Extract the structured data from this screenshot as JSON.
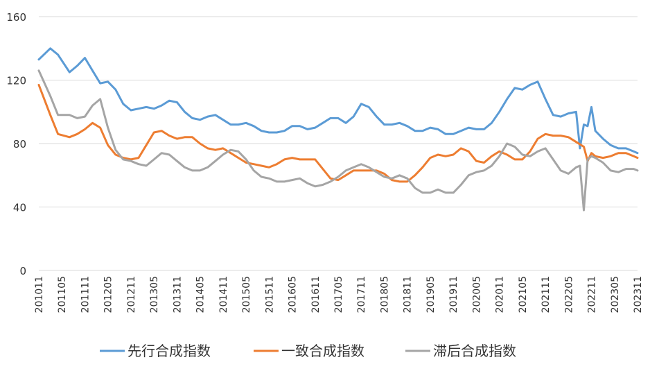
{
  "chart_data": {
    "type": "line",
    "title": "",
    "xlabel": "",
    "ylabel": "",
    "ylim": [
      0,
      160
    ],
    "yticks": [
      0,
      40,
      80,
      120,
      160
    ],
    "grid": true,
    "legend_position": "bottom",
    "x_tick_labels": [
      "201011",
      "201105",
      "201111",
      "201205",
      "201211",
      "201305",
      "201311",
      "201405",
      "201411",
      "201505",
      "201511",
      "201605",
      "201611",
      "201705",
      "201711",
      "201805",
      "201811",
      "201905",
      "201911",
      "202005",
      "202011",
      "202105",
      "202111",
      "202205",
      "202211",
      "202305",
      "202311"
    ],
    "series": [
      {
        "name": "先行合成指数",
        "color": "#5b9bd5",
        "points": [
          [
            "201011",
            133
          ],
          [
            "201102",
            140
          ],
          [
            "201104",
            136
          ],
          [
            "201107",
            125
          ],
          [
            "201109",
            129
          ],
          [
            "201111",
            134
          ],
          [
            "201201",
            126
          ],
          [
            "201203",
            118
          ],
          [
            "201205",
            119
          ],
          [
            "201207",
            114
          ],
          [
            "201209",
            105
          ],
          [
            "201211",
            101
          ],
          [
            "201301",
            102
          ],
          [
            "201303",
            103
          ],
          [
            "201305",
            102
          ],
          [
            "201307",
            104
          ],
          [
            "201309",
            107
          ],
          [
            "201311",
            106
          ],
          [
            "201401",
            100
          ],
          [
            "201403",
            96
          ],
          [
            "201405",
            95
          ],
          [
            "201407",
            97
          ],
          [
            "201409",
            98
          ],
          [
            "201411",
            95
          ],
          [
            "201501",
            92
          ],
          [
            "201503",
            92
          ],
          [
            "201505",
            93
          ],
          [
            "201507",
            91
          ],
          [
            "201509",
            88
          ],
          [
            "201511",
            87
          ],
          [
            "201601",
            87
          ],
          [
            "201603",
            88
          ],
          [
            "201605",
            91
          ],
          [
            "201607",
            91
          ],
          [
            "201609",
            89
          ],
          [
            "201611",
            90
          ],
          [
            "201701",
            93
          ],
          [
            "201703",
            96
          ],
          [
            "201705",
            96
          ],
          [
            "201707",
            93
          ],
          [
            "201709",
            97
          ],
          [
            "201711",
            105
          ],
          [
            "201801",
            103
          ],
          [
            "201803",
            97
          ],
          [
            "201805",
            92
          ],
          [
            "201807",
            92
          ],
          [
            "201809",
            93
          ],
          [
            "201811",
            91
          ],
          [
            "201901",
            88
          ],
          [
            "201903",
            88
          ],
          [
            "201905",
            90
          ],
          [
            "201907",
            89
          ],
          [
            "201909",
            86
          ],
          [
            "201911",
            86
          ],
          [
            "202001",
            88
          ],
          [
            "202003",
            90
          ],
          [
            "202005",
            89
          ],
          [
            "202007",
            89
          ],
          [
            "202009",
            93
          ],
          [
            "202011",
            100
          ],
          [
            "202101",
            108
          ],
          [
            "202103",
            115
          ],
          [
            "202105",
            114
          ],
          [
            "202107",
            117
          ],
          [
            "202109",
            119
          ],
          [
            "202111",
            108
          ],
          [
            "202201",
            98
          ],
          [
            "202203",
            97
          ],
          [
            "202205",
            99
          ],
          [
            "202207",
            100
          ],
          [
            "202208",
            77
          ],
          [
            "202209",
            92
          ],
          [
            "202210",
            91
          ],
          [
            "202211",
            103
          ],
          [
            "202212",
            88
          ],
          [
            "202302",
            83
          ],
          [
            "202304",
            79
          ],
          [
            "202306",
            77
          ],
          [
            "202308",
            77
          ],
          [
            "202310",
            75
          ],
          [
            "202311",
            74
          ]
        ]
      },
      {
        "name": "一致合成指数",
        "color": "#ed7d31",
        "points": [
          [
            "201011",
            117
          ],
          [
            "201102",
            98
          ],
          [
            "201104",
            86
          ],
          [
            "201107",
            84
          ],
          [
            "201109",
            86
          ],
          [
            "201111",
            89
          ],
          [
            "201201",
            93
          ],
          [
            "201203",
            90
          ],
          [
            "201205",
            79
          ],
          [
            "201207",
            73
          ],
          [
            "201209",
            71
          ],
          [
            "201211",
            70
          ],
          [
            "201301",
            71
          ],
          [
            "201303",
            79
          ],
          [
            "201305",
            87
          ],
          [
            "201307",
            88
          ],
          [
            "201309",
            85
          ],
          [
            "201311",
            83
          ],
          [
            "201401",
            84
          ],
          [
            "201403",
            84
          ],
          [
            "201405",
            80
          ],
          [
            "201407",
            77
          ],
          [
            "201409",
            76
          ],
          [
            "201411",
            77
          ],
          [
            "201501",
            74
          ],
          [
            "201503",
            71
          ],
          [
            "201505",
            68
          ],
          [
            "201507",
            67
          ],
          [
            "201509",
            66
          ],
          [
            "201511",
            65
          ],
          [
            "201601",
            67
          ],
          [
            "201603",
            70
          ],
          [
            "201605",
            71
          ],
          [
            "201607",
            70
          ],
          [
            "201609",
            70
          ],
          [
            "201611",
            70
          ],
          [
            "201701",
            64
          ],
          [
            "201703",
            58
          ],
          [
            "201705",
            57
          ],
          [
            "201707",
            60
          ],
          [
            "201709",
            63
          ],
          [
            "201711",
            63
          ],
          [
            "201801",
            63
          ],
          [
            "201803",
            63
          ],
          [
            "201805",
            61
          ],
          [
            "201807",
            57
          ],
          [
            "201809",
            56
          ],
          [
            "201811",
            56
          ],
          [
            "201901",
            60
          ],
          [
            "201903",
            65
          ],
          [
            "201905",
            71
          ],
          [
            "201907",
            73
          ],
          [
            "201909",
            72
          ],
          [
            "201911",
            73
          ],
          [
            "202001",
            77
          ],
          [
            "202003",
            75
          ],
          [
            "202005",
            69
          ],
          [
            "202007",
            68
          ],
          [
            "202009",
            72
          ],
          [
            "202011",
            75
          ],
          [
            "202101",
            73
          ],
          [
            "202103",
            70
          ],
          [
            "202105",
            70
          ],
          [
            "202107",
            75
          ],
          [
            "202109",
            83
          ],
          [
            "202111",
            86
          ],
          [
            "202201",
            85
          ],
          [
            "202203",
            85
          ],
          [
            "202205",
            84
          ],
          [
            "202207",
            81
          ],
          [
            "202209",
            78
          ],
          [
            "202210",
            69
          ],
          [
            "202211",
            74
          ],
          [
            "202212",
            72
          ],
          [
            "202302",
            71
          ],
          [
            "202304",
            72
          ],
          [
            "202306",
            74
          ],
          [
            "202308",
            74
          ],
          [
            "202310",
            72
          ],
          [
            "202311",
            71
          ]
        ]
      },
      {
        "name": "滞后合成指数",
        "color": "#a5a5a5",
        "points": [
          [
            "201011",
            126
          ],
          [
            "201102",
            110
          ],
          [
            "201104",
            98
          ],
          [
            "201107",
            98
          ],
          [
            "201109",
            96
          ],
          [
            "201111",
            97
          ],
          [
            "201201",
            104
          ],
          [
            "201203",
            108
          ],
          [
            "201205",
            90
          ],
          [
            "201207",
            76
          ],
          [
            "201209",
            70
          ],
          [
            "201211",
            69
          ],
          [
            "201301",
            67
          ],
          [
            "201303",
            66
          ],
          [
            "201305",
            70
          ],
          [
            "201307",
            74
          ],
          [
            "201309",
            73
          ],
          [
            "201311",
            69
          ],
          [
            "201401",
            65
          ],
          [
            "201403",
            63
          ],
          [
            "201405",
            63
          ],
          [
            "201407",
            65
          ],
          [
            "201409",
            69
          ],
          [
            "201411",
            73
          ],
          [
            "201501",
            76
          ],
          [
            "201503",
            75
          ],
          [
            "201505",
            70
          ],
          [
            "201507",
            63
          ],
          [
            "201509",
            59
          ],
          [
            "201511",
            58
          ],
          [
            "201601",
            56
          ],
          [
            "201603",
            56
          ],
          [
            "201605",
            57
          ],
          [
            "201607",
            58
          ],
          [
            "201609",
            55
          ],
          [
            "201611",
            53
          ],
          [
            "201701",
            54
          ],
          [
            "201703",
            56
          ],
          [
            "201705",
            59
          ],
          [
            "201707",
            63
          ],
          [
            "201709",
            65
          ],
          [
            "201711",
            67
          ],
          [
            "201801",
            65
          ],
          [
            "201803",
            62
          ],
          [
            "201805",
            59
          ],
          [
            "201807",
            58
          ],
          [
            "201809",
            60
          ],
          [
            "201811",
            58
          ],
          [
            "201901",
            52
          ],
          [
            "201903",
            49
          ],
          [
            "201905",
            49
          ],
          [
            "201907",
            51
          ],
          [
            "201909",
            49
          ],
          [
            "201911",
            49
          ],
          [
            "202001",
            54
          ],
          [
            "202003",
            60
          ],
          [
            "202005",
            62
          ],
          [
            "202007",
            63
          ],
          [
            "202009",
            66
          ],
          [
            "202011",
            72
          ],
          [
            "202101",
            80
          ],
          [
            "202103",
            78
          ],
          [
            "202105",
            73
          ],
          [
            "202107",
            72
          ],
          [
            "202109",
            75
          ],
          [
            "202111",
            77
          ],
          [
            "202201",
            70
          ],
          [
            "202203",
            63
          ],
          [
            "202205",
            61
          ],
          [
            "202207",
            65
          ],
          [
            "202208",
            66
          ],
          [
            "202209",
            38
          ],
          [
            "202210",
            70
          ],
          [
            "202211",
            72
          ],
          [
            "202212",
            71
          ],
          [
            "202302",
            68
          ],
          [
            "202304",
            63
          ],
          [
            "202306",
            62
          ],
          [
            "202308",
            64
          ],
          [
            "202310",
            64
          ],
          [
            "202311",
            63
          ]
        ]
      }
    ]
  }
}
